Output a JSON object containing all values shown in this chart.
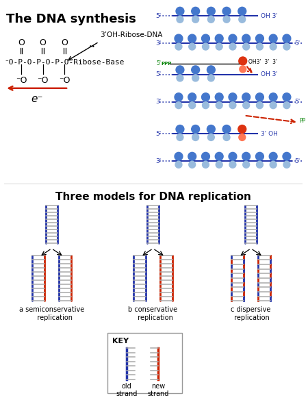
{
  "title_synthesis": "The DNA synthesis",
  "title_replication": "Three models for DNA replication",
  "bg_color": "#ffffff",
  "blue_color": "#2233aa",
  "red_color": "#cc2200",
  "nucleotide_blue": "#4477cc",
  "nucleotide_light": "#99bbdd",
  "label_a": "a semiconservative\n   replication",
  "label_b": "b conservative\n  replication",
  "label_c": "c dispersive\n replication",
  "key_label": "KEY",
  "old_strand": "old\nstrand",
  "new_strand": "new\nstrand",
  "ribose_label": "3’OH-Ribose-DNA",
  "electron_label": "e⁻"
}
